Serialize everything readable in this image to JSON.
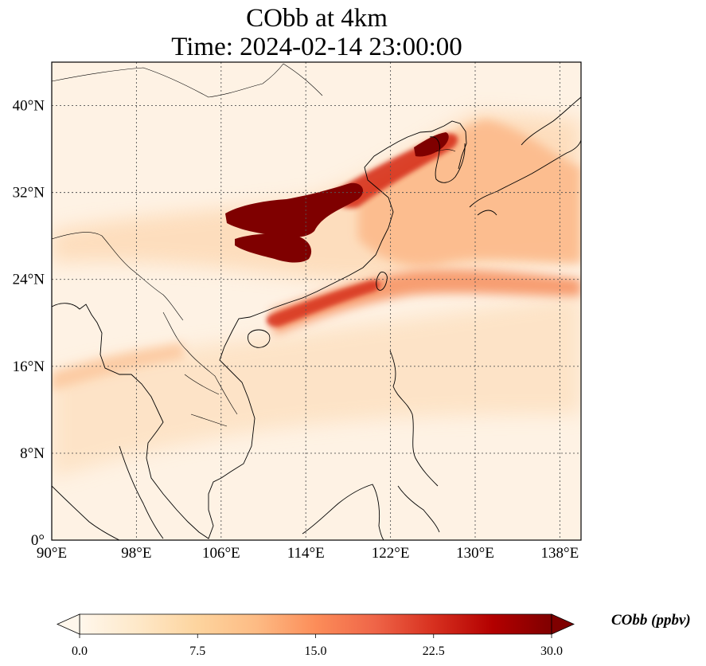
{
  "title": {
    "line1": "CObb at 4km",
    "line2": "Time: 2024-02-14 23:00:00"
  },
  "map": {
    "lon_range": [
      90,
      140
    ],
    "lat_range": [
      0,
      44
    ],
    "lon_ticks": [
      {
        "value": 90,
        "label": "90°E"
      },
      {
        "value": 98,
        "label": "98°E"
      },
      {
        "value": 106,
        "label": "106°E"
      },
      {
        "value": 114,
        "label": "114°E"
      },
      {
        "value": 122,
        "label": "122°E"
      },
      {
        "value": 130,
        "label": "130°E"
      },
      {
        "value": 138,
        "label": "138°E"
      }
    ],
    "lat_ticks": [
      {
        "value": 0,
        "label": "0°"
      },
      {
        "value": 8,
        "label": "8°N"
      },
      {
        "value": 16,
        "label": "16°N"
      },
      {
        "value": 24,
        "label": "24°N"
      },
      {
        "value": 32,
        "label": "32°N"
      },
      {
        "value": 40,
        "label": "40°N"
      }
    ],
    "gridlines": true,
    "background_color": "#fef2e4",
    "coastline_color": "#000000"
  },
  "colorbar": {
    "title": "CObb (ppbv)",
    "min": 0.0,
    "max": 30.0,
    "extend": "both",
    "ticks": [
      {
        "value": 0.0,
        "label": "0.0"
      },
      {
        "value": 7.5,
        "label": "7.5"
      },
      {
        "value": 15.0,
        "label": "15.0"
      },
      {
        "value": 22.5,
        "label": "22.5"
      },
      {
        "value": 30.0,
        "label": "30.0"
      }
    ],
    "colormap": [
      "#fff7ec",
      "#fee8c8",
      "#fdd49e",
      "#fdbb84",
      "#fc8d59",
      "#ef6548",
      "#d7301f",
      "#b30000",
      "#7f0000"
    ]
  }
}
